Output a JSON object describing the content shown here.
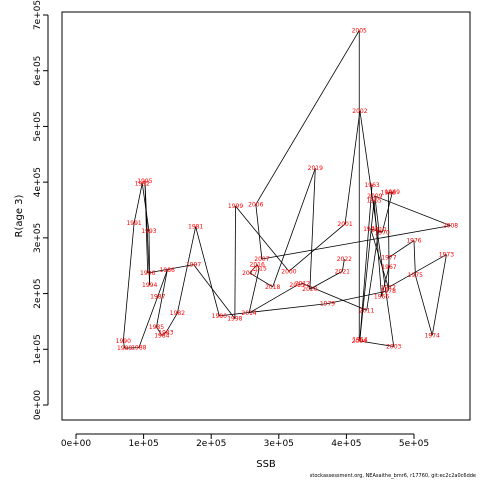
{
  "chart_data": {
    "type": "line",
    "title": "",
    "xlabel": "SSB",
    "ylabel": "R(age 3)",
    "xlim": [
      0,
      580000
    ],
    "ylim": [
      0,
      700000
    ],
    "x_ticks": [
      0,
      100000,
      200000,
      300000,
      400000,
      500000
    ],
    "x_tick_labels": [
      "0e+00",
      "1e+05",
      "2e+05",
      "3e+05",
      "4e+05",
      "5e+05"
    ],
    "y_ticks": [
      0,
      100000,
      200000,
      300000,
      400000,
      500000,
      600000,
      700000
    ],
    "y_tick_labels": [
      "0e+00",
      "1e+05",
      "2e+05",
      "3e+05",
      "4e+05",
      "5e+05",
      "6e+05",
      "7e+05"
    ],
    "grid": false,
    "line_color": "#000000",
    "label_color": "#ff0000",
    "series": [
      {
        "points": [
          {
            "year": "1980",
            "x": 212000,
            "y": 160000
          },
          {
            "year": "1981",
            "x": 177000,
            "y": 320000
          },
          {
            "year": "1982",
            "x": 150000,
            "y": 165000
          },
          {
            "year": "1983",
            "x": 133000,
            "y": 130000
          },
          {
            "year": "1984",
            "x": 127000,
            "y": 125000
          },
          {
            "year": "1985",
            "x": 119000,
            "y": 140000
          },
          {
            "year": "1986",
            "x": 135000,
            "y": 242000
          },
          {
            "year": "1987",
            "x": 121000,
            "y": 195000
          },
          {
            "year": "1988",
            "x": 93000,
            "y": 103000
          },
          {
            "year": "1989",
            "x": 72000,
            "y": 102000
          },
          {
            "year": "1990",
            "x": 70000,
            "y": 115000
          },
          {
            "year": "1991",
            "x": 86000,
            "y": 327000
          },
          {
            "year": "1992",
            "x": 98000,
            "y": 398000
          },
          {
            "year": "1993",
            "x": 108000,
            "y": 312000
          },
          {
            "year": "1994",
            "x": 109000,
            "y": 215000
          },
          {
            "year": "1995",
            "x": 102000,
            "y": 402000
          },
          {
            "year": "1996",
            "x": 106000,
            "y": 237000
          },
          {
            "year": "1997",
            "x": 174000,
            "y": 252000
          },
          {
            "year": "1998",
            "x": 235000,
            "y": 155000
          },
          {
            "year": "1999",
            "x": 236000,
            "y": 357000
          },
          {
            "year": "2000",
            "x": 315000,
            "y": 240000
          },
          {
            "year": "2001",
            "x": 398000,
            "y": 325000
          },
          {
            "year": "2002",
            "x": 420000,
            "y": 528000
          },
          {
            "year": "2003",
            "x": 470000,
            "y": 105000
          },
          {
            "year": "2004",
            "x": 419000,
            "y": 115000
          },
          {
            "year": "2005",
            "x": 419000,
            "y": 672000
          },
          {
            "year": "2006",
            "x": 266000,
            "y": 360000
          },
          {
            "year": "2007",
            "x": 275000,
            "y": 262000
          },
          {
            "year": "2008",
            "x": 554000,
            "y": 322000
          },
          {
            "year": "2009",
            "x": 442000,
            "y": 375000
          },
          {
            "year": "2010",
            "x": 448000,
            "y": 315000
          },
          {
            "year": "2011",
            "x": 430000,
            "y": 170000
          },
          {
            "year": "2012",
            "x": 335000,
            "y": 218000
          },
          {
            "year": "2013",
            "x": 327000,
            "y": 215000
          },
          {
            "year": "2014",
            "x": 256000,
            "y": 165000
          },
          {
            "year": "2015",
            "x": 271000,
            "y": 245000
          },
          {
            "year": "2016",
            "x": 268000,
            "y": 252000
          },
          {
            "year": "2017",
            "x": 257000,
            "y": 237000
          },
          {
            "year": "2018",
            "x": 291000,
            "y": 212000
          },
          {
            "year": "2019",
            "x": 354000,
            "y": 425000
          },
          {
            "year": "2020",
            "x": 346000,
            "y": 208000
          },
          {
            "year": "2021",
            "x": 394000,
            "y": 240000
          },
          {
            "year": "2022",
            "x": 397000,
            "y": 262000
          },
          {
            "year": "1963",
            "x": 438000,
            "y": 395000
          },
          {
            "year": "1964",
            "x": 420000,
            "y": 118000
          },
          {
            "year": "1965",
            "x": 441000,
            "y": 367000
          },
          {
            "year": "1966",
            "x": 452000,
            "y": 195000
          },
          {
            "year": "1967",
            "x": 463000,
            "y": 248000
          },
          {
            "year": "1968",
            "x": 462000,
            "y": 381000
          },
          {
            "year": "1969",
            "x": 468000,
            "y": 382000
          },
          {
            "year": "1970",
            "x": 453000,
            "y": 310000
          },
          {
            "year": "1971",
            "x": 436000,
            "y": 316000
          },
          {
            "year": "1972",
            "x": 462000,
            "y": 211000
          },
          {
            "year": "1973",
            "x": 548000,
            "y": 270000
          },
          {
            "year": "1974",
            "x": 527000,
            "y": 125000
          },
          {
            "year": "1975",
            "x": 502000,
            "y": 233000
          },
          {
            "year": "1976",
            "x": 500000,
            "y": 295000
          },
          {
            "year": "1977",
            "x": 463000,
            "y": 265000
          },
          {
            "year": "1978",
            "x": 462000,
            "y": 205000
          },
          {
            "year": "1979",
            "x": 372000,
            "y": 182000
          }
        ]
      }
    ]
  },
  "footer": "stockassessment.org, NEAsaithe_bmr6, r17760, git:ec2c2a0c6dde"
}
